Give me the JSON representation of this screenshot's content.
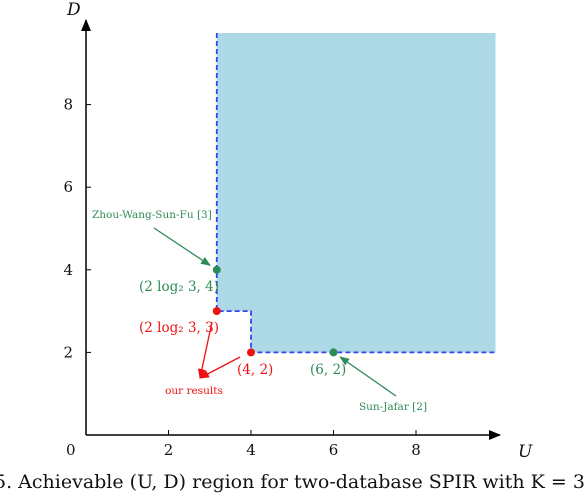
{
  "chart_data": {
    "type": "scatter",
    "xlabel": "U",
    "ylabel": "D",
    "xlim": [
      0,
      10
    ],
    "ylim": [
      0,
      10
    ],
    "xticks": [
      0,
      2,
      4,
      6,
      8
    ],
    "yticks": [
      2,
      4,
      6,
      8
    ],
    "origin_label": "0",
    "region": {
      "fill": "#add8e6",
      "boundary_color": "#3344ee",
      "boundary": [
        [
          3.17,
          10
        ],
        [
          3.17,
          3
        ],
        [
          4,
          3
        ],
        [
          4,
          2
        ],
        [
          10,
          2
        ]
      ]
    },
    "points": [
      {
        "name": "zhou",
        "x": 3.17,
        "y": 4,
        "label": "(2 log₂ 3, 4)",
        "color": "#2e8b57"
      },
      {
        "name": "ours-a",
        "x": 3.17,
        "y": 3,
        "label": "(2 log₂ 3, 3)",
        "color": "#ee1111"
      },
      {
        "name": "ours-b",
        "x": 4,
        "y": 2,
        "label": "(4, 2)",
        "color": "#ee1111"
      },
      {
        "name": "sunjafar",
        "x": 6,
        "y": 2,
        "label": "(6, 2)",
        "color": "#2e8b57"
      }
    ],
    "annotations": [
      {
        "name": "zhou-wang-sun-fu",
        "text": "Zhou-Wang-Sun-Fu [3]",
        "color": "#2e8b57",
        "target": "zhou"
      },
      {
        "name": "our-results",
        "text": "our results",
        "color": "#ee1111",
        "target": "ours-a,ours-b"
      },
      {
        "name": "sun-jafar",
        "text": "Sun-Jafar [2]",
        "color": "#2e8b57",
        "target": "sunjafar"
      }
    ]
  },
  "caption": "5.  Achievable (U, D) region for two-database SPIR with K = 3"
}
